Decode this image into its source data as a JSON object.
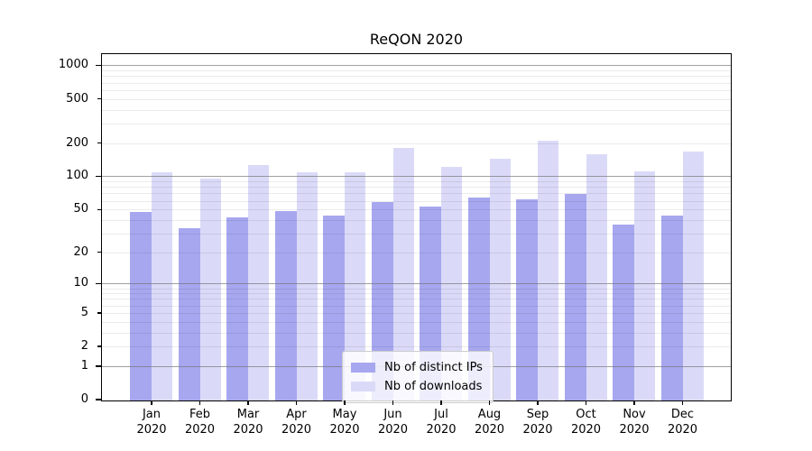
{
  "chart_data": {
    "type": "bar",
    "title": "ReQON 2020",
    "x_tick_months": [
      "Jan",
      "Feb",
      "Mar",
      "Apr",
      "May",
      "Jun",
      "Jul",
      "Aug",
      "Sep",
      "Oct",
      "Nov",
      "Dec"
    ],
    "x_tick_year": "2020",
    "categories": [
      "Jan 2020",
      "Feb 2020",
      "Mar 2020",
      "Apr 2020",
      "May 2020",
      "Jun 2020",
      "Jul 2020",
      "Aug 2020",
      "Sep 2020",
      "Oct 2020",
      "Nov 2020",
      "Dec 2020"
    ],
    "series": [
      {
        "name": "Nb of distinct IPs",
        "color": "#a7a7ef",
        "values": [
          48,
          34,
          43,
          49,
          45,
          60,
          54,
          65,
          63,
          71,
          37,
          45
        ]
      },
      {
        "name": "Nb of downloads",
        "color": "#dadaf8",
        "values": [
          110,
          97,
          130,
          110,
          110,
          183,
          125,
          148,
          215,
          160,
          112,
          170
        ]
      }
    ],
    "y_axis": {
      "scale": "log1p",
      "tick_labels": [
        "1000",
        "500",
        "200",
        "100",
        "50",
        "20",
        "10",
        "5",
        "2",
        "1",
        "0"
      ],
      "tick_values": [
        1000,
        500,
        200,
        100,
        50,
        20,
        10,
        5,
        2,
        1,
        0
      ],
      "major_tick_values": [
        1000,
        100,
        10,
        1,
        0
      ],
      "ylim": [
        0,
        1270
      ],
      "grid": "both"
    },
    "legend": {
      "position": "lower-center-inside",
      "entries": [
        "Nb of distinct IPs",
        "Nb of downloads"
      ]
    },
    "colors": {
      "distinct_ips": "#a7a7ef",
      "downloads": "#dadaf8",
      "grid_major": "#6e6e6e",
      "grid_minor": "#ebebeb",
      "spine": "#000000",
      "background": "#ffffff"
    }
  }
}
